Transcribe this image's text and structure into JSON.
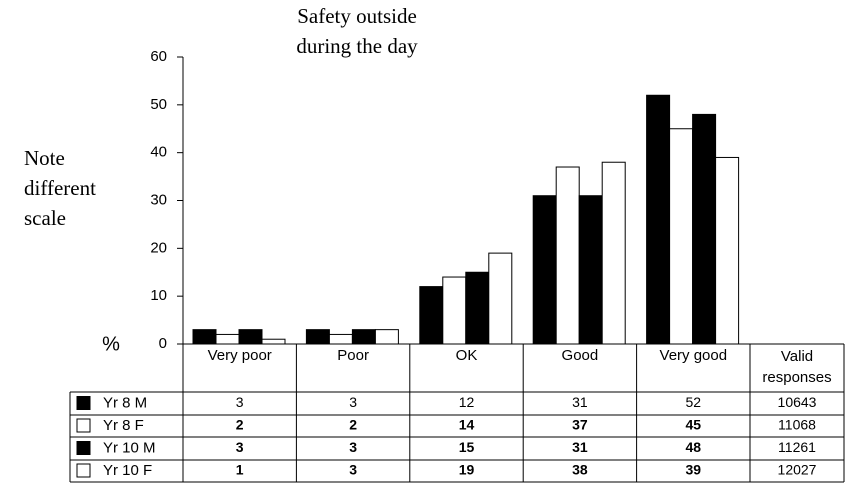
{
  "chart_data": {
    "type": "bar",
    "title": [
      "Safety outside",
      "during the day"
    ],
    "note": [
      "Note",
      "different",
      "scale"
    ],
    "ylabel": "%",
    "categories": [
      "Very poor",
      "Poor",
      "OK",
      "Good",
      "Very good"
    ],
    "series": [
      {
        "name": "Yr 8 M",
        "color": "#000000",
        "values": [
          3,
          3,
          12,
          31,
          52
        ]
      },
      {
        "name": "Yr 8 F",
        "color": "#ffffff",
        "values": [
          2,
          2,
          14,
          37,
          45
        ]
      },
      {
        "name": "Yr 10 M",
        "color": "#000000",
        "values": [
          3,
          3,
          15,
          31,
          48
        ]
      },
      {
        "name": "Yr 10 F",
        "color": "#ffffff",
        "values": [
          1,
          3,
          19,
          38,
          39
        ]
      }
    ],
    "valid_responses": {
      "label": [
        "Valid",
        "responses"
      ],
      "values": [
        10643,
        11068,
        11261,
        12027
      ]
    },
    "ylim": [
      0,
      60
    ],
    "yticks": [
      0,
      10,
      20,
      30,
      40,
      50,
      60
    ],
    "grid": false
  }
}
